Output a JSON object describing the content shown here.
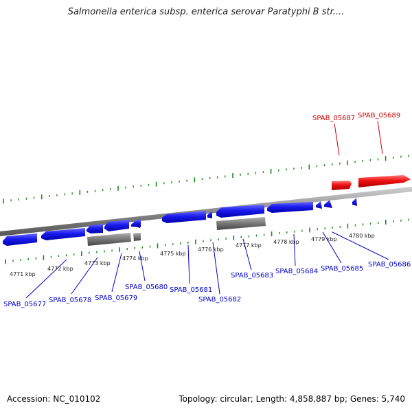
{
  "title": "Salmonella enterica subsp. enterica serovar Paratyphi B str....",
  "footer": {
    "accession": "Accession: NC_010102",
    "summary": "Topology: circular; Length: 4,858,887 bp; Genes: 5,740"
  },
  "colors": {
    "forward_gene": "#ff0000",
    "reverse_gene": "#0000ee",
    "other_feature": "#666666",
    "backbone": "#8a8a8a",
    "tick": "#1a8a1a",
    "blue_label": "#0000cc",
    "red_label": "#cc0000"
  },
  "kbp_labels": [
    "4771 kbp",
    "4772 kbp",
    "4773 kbp",
    "4774 kbp",
    "4775 kbp",
    "4776 kbp",
    "4777 kbp",
    "4778 kbp",
    "4779 kbp",
    "4780 kbp"
  ],
  "gene_labels_top": [
    "SPAB_05687",
    "SPAB_05689"
  ],
  "gene_labels_bottom": [
    "SPAB_05677",
    "SPAB_05678",
    "SPAB_05679",
    "SPAB_05680",
    "SPAB_05681",
    "SPAB_05682",
    "SPAB_05683",
    "SPAB_05684",
    "SPAB_05685",
    "SPAB_05686"
  ]
}
